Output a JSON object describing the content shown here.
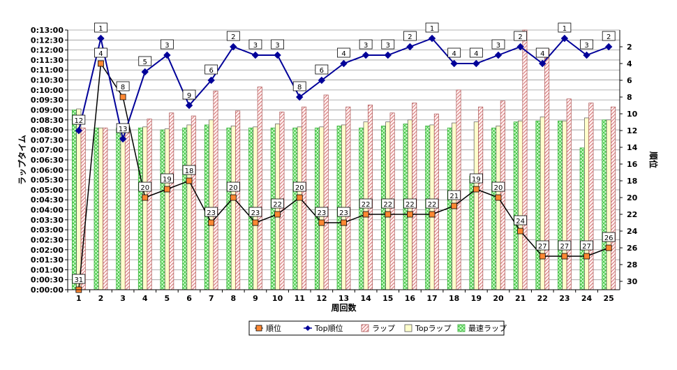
{
  "chart_data": {
    "type": "bar",
    "xlabel": "周回数",
    "ylabel": "ラップタイム",
    "y2label": "順位",
    "categories": [
      "1",
      "2",
      "3",
      "4",
      "5",
      "6",
      "7",
      "8",
      "9",
      "10",
      "11",
      "12",
      "13",
      "14",
      "15",
      "16",
      "17",
      "18",
      "19",
      "20",
      "21",
      "22",
      "23",
      "24",
      "25"
    ],
    "ylim_seconds": [
      0,
      780
    ],
    "y_ticks": [
      "0:00:00",
      "0:00:30",
      "0:01:00",
      "0:01:30",
      "0:02:00",
      "0:02:30",
      "0:03:00",
      "0:03:30",
      "0:04:00",
      "0:04:30",
      "0:05:00",
      "0:05:30",
      "0:06:00",
      "0:06:30",
      "0:07:00",
      "0:07:30",
      "0:08:00",
      "0:08:30",
      "0:09:00",
      "0:09:30",
      "0:10:00",
      "0:10:30",
      "0:11:00",
      "0:11:30",
      "0:12:00",
      "0:12:30",
      "0:13:00"
    ],
    "y2_range": [
      0,
      31
    ],
    "y2_ticks": [
      "2",
      "4",
      "6",
      "8",
      "10",
      "12",
      "14",
      "16",
      "18",
      "20",
      "22",
      "24",
      "26",
      "28",
      "30"
    ],
    "legend_position": "bottom",
    "grid": true,
    "bar_series": [
      {
        "name": "最速ラップ",
        "color": "#33cc33",
        "pattern": "crosshatch",
        "values": [
          540,
          486,
          486,
          486,
          480,
          486,
          495,
          486,
          486,
          486,
          486,
          486,
          492,
          486,
          492,
          498,
          492,
          486,
          342,
          486,
          504,
          507,
          507,
          426,
          510
        ]
      },
      {
        "name": "Topラップ",
        "color": "#ffffcc",
        "pattern": "solid",
        "values": [
          543,
          486,
          486,
          489,
          483,
          495,
          510,
          492,
          489,
          498,
          489,
          489,
          495,
          504,
          504,
          510,
          495,
          501,
          504,
          492,
          507,
          519,
          507,
          516,
          510
        ]
      },
      {
        "name": "ラップ",
        "color": "#cc6666",
        "pattern": "diagonal",
        "values": [
          486,
          486,
          486,
          513,
          531,
          522,
          597,
          537,
          609,
          534,
          549,
          585,
          549,
          555,
          531,
          561,
          528,
          600,
          549,
          567,
          780,
          723,
          573,
          561,
          549
        ]
      }
    ],
    "line_series": [
      {
        "name": "順位",
        "color": "#000000",
        "marker": "square",
        "marker_color": "#ff8833",
        "values": [
          31,
          4,
          8,
          20,
          19,
          18,
          23,
          20,
          23,
          22,
          20,
          23,
          23,
          22,
          22,
          22,
          22,
          21,
          19,
          20,
          24,
          27,
          27,
          27,
          26
        ]
      },
      {
        "name": "Top順位",
        "color": "#000099",
        "marker": "diamond",
        "marker_color": "#000099",
        "values": [
          12,
          1,
          13,
          5,
          3,
          9,
          6,
          2,
          3,
          3,
          8,
          6,
          4,
          3,
          3,
          2,
          1,
          4,
          4,
          3,
          2,
          4,
          1,
          3,
          2
        ]
      }
    ]
  }
}
